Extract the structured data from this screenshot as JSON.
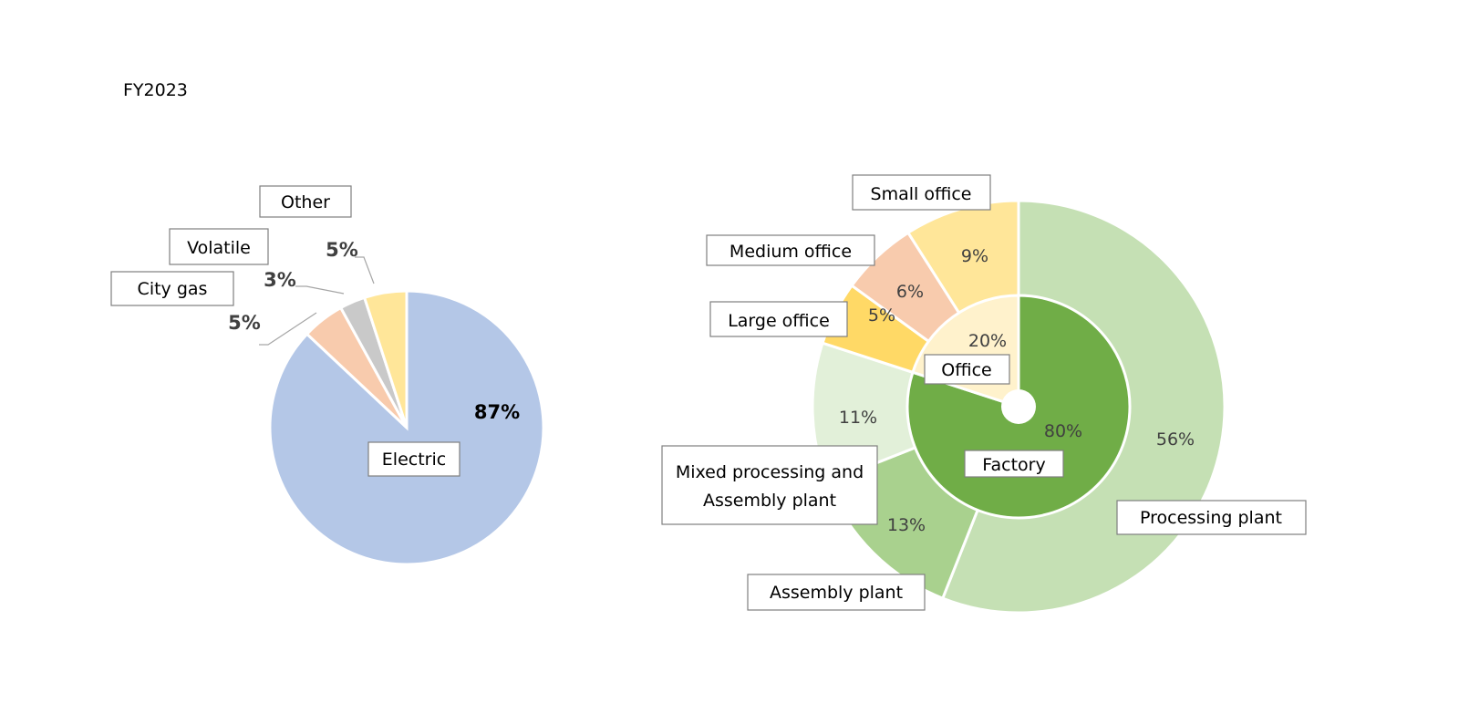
{
  "page_title": "FY2023",
  "chart_data": [
    {
      "type": "pie",
      "title": "",
      "categories": [
        "Electric",
        "City gas",
        "Volatile",
        "Other"
      ],
      "values": [
        87,
        5,
        3,
        5
      ],
      "value_labels": [
        "87%",
        "5%",
        "3%",
        "5%"
      ],
      "colors": [
        "#b4c7e7",
        "#f8cbad",
        "#c9c9c9",
        "#ffe699"
      ],
      "legend": "none"
    },
    {
      "type": "pie",
      "subtype": "sunburst",
      "title": "",
      "inner_ring": {
        "categories": [
          "Factory",
          "Office"
        ],
        "values": [
          80,
          20
        ],
        "value_labels": [
          "80%",
          "20%"
        ],
        "colors": [
          "#70ad47",
          "#fff2cc"
        ]
      },
      "outer_ring": {
        "categories": [
          "Processing plant",
          "Assembly plant",
          "Mixed processing and Assembly plant",
          "Large office",
          "Medium office",
          "Small office"
        ],
        "parents": [
          "Factory",
          "Factory",
          "Factory",
          "Office",
          "Office",
          "Office"
        ],
        "values": [
          56,
          13,
          11,
          5,
          6,
          9
        ],
        "value_labels": [
          "56%",
          "13%",
          "11%",
          "5%",
          "6%",
          "9%"
        ],
        "colors": [
          "#c5e0b4",
          "#a9d18e",
          "#e2f0d9",
          "#ffd966",
          "#f8cbad",
          "#ffe699"
        ]
      },
      "legend": "none"
    }
  ]
}
